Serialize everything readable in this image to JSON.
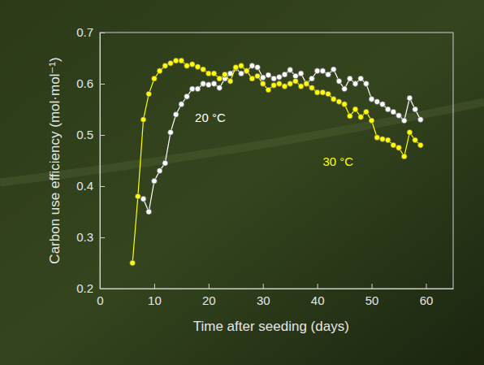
{
  "chart_data": {
    "type": "line",
    "x_label": "Time after seeding (days)",
    "y_label": "Carbon use efficiency  (mol·mol⁻¹)",
    "xlim": [
      0,
      65
    ],
    "xticks": [
      0,
      10,
      20,
      30,
      40,
      50,
      60
    ],
    "ylim": [
      0.2,
      0.7
    ],
    "yticks": [
      0.2,
      0.3,
      0.4,
      0.5,
      0.6,
      0.7
    ],
    "x": [
      6,
      7,
      8,
      9,
      10,
      11,
      12,
      13,
      14,
      15,
      16,
      17,
      18,
      19,
      20,
      21,
      22,
      23,
      24,
      25,
      26,
      27,
      28,
      29,
      30,
      31,
      32,
      33,
      34,
      35,
      36,
      37,
      38,
      39,
      40,
      41,
      42,
      43,
      44,
      45,
      46,
      47,
      48,
      49,
      50,
      51,
      52,
      53,
      54,
      55,
      56,
      57,
      58,
      59
    ],
    "series": [
      {
        "name": "20 °C",
        "color": "#ffffff",
        "marker": "circle",
        "line_style": "solid",
        "values": [
          null,
          null,
          0.375,
          0.35,
          0.41,
          0.43,
          0.445,
          0.505,
          0.54,
          0.56,
          0.575,
          0.59,
          0.59,
          0.6,
          0.598,
          0.6,
          0.592,
          0.61,
          0.62,
          0.63,
          0.62,
          0.625,
          0.635,
          0.632,
          0.612,
          0.617,
          0.61,
          0.613,
          0.618,
          0.627,
          0.615,
          0.62,
          0.6,
          0.61,
          0.625,
          0.625,
          0.618,
          0.628,
          0.605,
          0.59,
          0.61,
          0.6,
          0.61,
          0.6,
          0.57,
          0.565,
          0.56,
          0.55,
          0.545,
          0.538,
          0.528,
          0.572,
          0.55,
          0.53
        ]
      },
      {
        "name": "30 °C",
        "color": "#ffff00",
        "marker": "circle",
        "line_style": "solid",
        "values": [
          0.25,
          0.38,
          0.53,
          0.58,
          0.61,
          0.625,
          0.635,
          0.64,
          0.645,
          0.645,
          0.635,
          0.638,
          0.633,
          0.628,
          0.62,
          0.62,
          0.61,
          0.618,
          0.605,
          0.632,
          0.635,
          0.625,
          0.61,
          0.615,
          0.6,
          0.588,
          0.597,
          0.6,
          0.595,
          0.6,
          0.605,
          0.595,
          0.6,
          0.592,
          0.583,
          0.583,
          0.58,
          0.57,
          0.565,
          0.56,
          0.537,
          0.55,
          0.535,
          0.545,
          0.528,
          0.495,
          0.492,
          0.49,
          0.48,
          0.475,
          0.458,
          0.505,
          0.49,
          0.48
        ]
      }
    ]
  }
}
